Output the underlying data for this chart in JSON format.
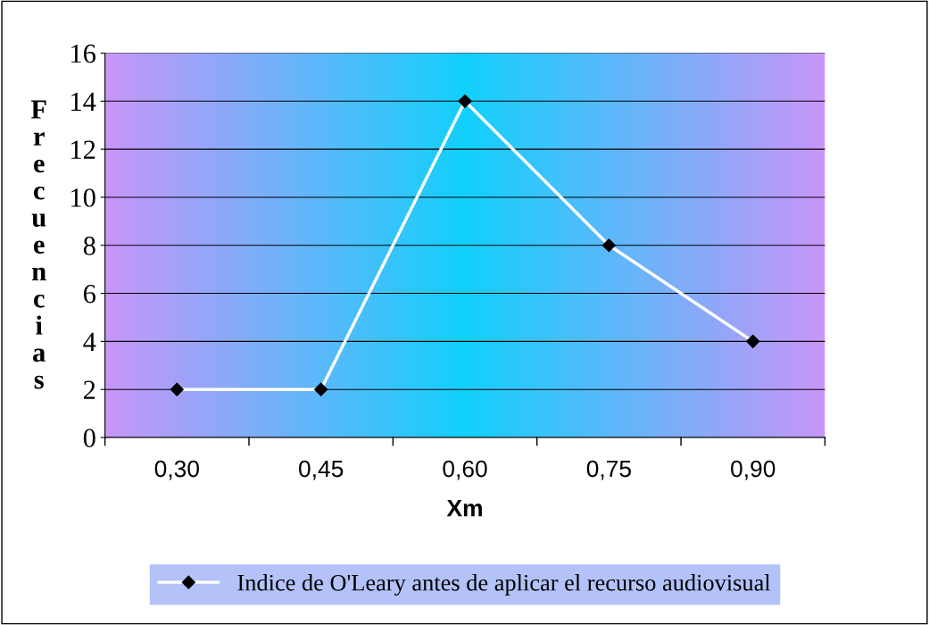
{
  "chart_data": {
    "type": "line",
    "xlabel": "Xm",
    "ylabel": "Frecuencias",
    "categories": [
      "0,30",
      "0,45",
      "0,60",
      "0,75",
      "0,90"
    ],
    "series": [
      {
        "name": "Indice de O'Leary antes de aplicar el recurso audiovisual",
        "color": "#ffffff",
        "values": [
          2,
          2,
          14,
          8,
          4
        ]
      }
    ],
    "ylim": [
      0,
      16
    ],
    "yticks": [
      0,
      2,
      4,
      6,
      8,
      10,
      12,
      14,
      16
    ],
    "grid": "y",
    "legend": "bottom",
    "marker": "diamond",
    "line_style": "solid"
  }
}
